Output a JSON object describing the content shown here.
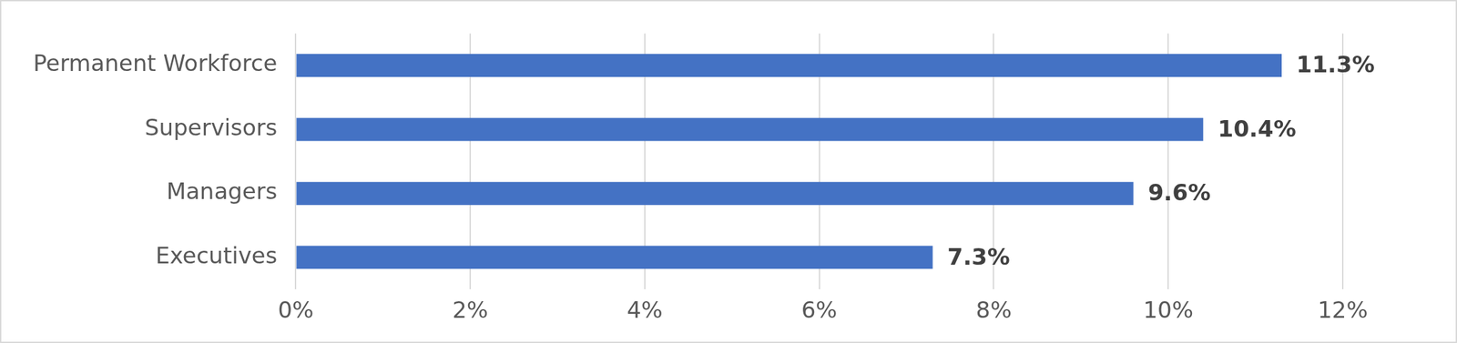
{
  "chart_data": {
    "type": "bar",
    "orientation": "horizontal",
    "categories": [
      "Permanent Workforce",
      "Supervisors",
      "Managers",
      "Executives"
    ],
    "values": [
      11.3,
      10.4,
      9.6,
      7.3
    ],
    "value_labels": [
      "11.3%",
      "10.4%",
      "9.6%",
      "7.3%"
    ],
    "data_labels": true,
    "color": "#4472c4",
    "xlim": [
      0,
      12
    ],
    "xticks": [
      {
        "value": 0,
        "label": "0%"
      },
      {
        "value": 2,
        "label": "2%"
      },
      {
        "value": 4,
        "label": "4%"
      },
      {
        "value": 6,
        "label": "6%"
      },
      {
        "value": 8,
        "label": "8%"
      },
      {
        "value": 10,
        "label": "10%"
      },
      {
        "value": 12,
        "label": "12%"
      }
    ],
    "grid": true
  }
}
